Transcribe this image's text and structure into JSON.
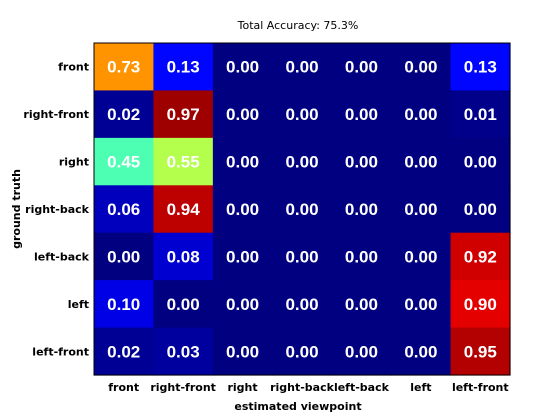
{
  "chart_data": {
    "type": "heatmap",
    "title": "Total Accuracy: 75.3%",
    "xlabel": "estimated viewpoint",
    "ylabel": "ground truth",
    "x_categories": [
      "front",
      "right-front",
      "right",
      "right-back",
      "left-back",
      "left",
      "left-front"
    ],
    "y_categories": [
      "front",
      "right-front",
      "right",
      "right-back",
      "left-back",
      "left",
      "left-front"
    ],
    "value_range": [
      0,
      1
    ],
    "colormap": "jet",
    "values": [
      [
        0.73,
        0.13,
        0.0,
        0.0,
        0.0,
        0.0,
        0.13
      ],
      [
        0.02,
        0.97,
        0.0,
        0.0,
        0.0,
        0.0,
        0.01
      ],
      [
        0.45,
        0.55,
        0.0,
        0.0,
        0.0,
        0.0,
        0.0
      ],
      [
        0.06,
        0.94,
        0.0,
        0.0,
        0.0,
        0.0,
        0.0
      ],
      [
        0.0,
        0.08,
        0.0,
        0.0,
        0.0,
        0.0,
        0.92
      ],
      [
        0.1,
        0.0,
        0.0,
        0.0,
        0.0,
        0.0,
        0.9
      ],
      [
        0.02,
        0.03,
        0.0,
        0.0,
        0.0,
        0.0,
        0.95
      ]
    ],
    "labels": [
      [
        "0.73",
        "0.13",
        "0.00",
        "0.00",
        "0.00",
        "0.00",
        "0.13"
      ],
      [
        "0.02",
        "0.97",
        "0.00",
        "0.00",
        "0.00",
        "0.00",
        "0.01"
      ],
      [
        "0.45",
        "0.55",
        "0.00",
        "0.00",
        "0.00",
        "0.00",
        "0.00"
      ],
      [
        "0.06",
        "0.94",
        "0.00",
        "0.00",
        "0.00",
        "0.00",
        "0.00"
      ],
      [
        "0.00",
        "0.08",
        "0.00",
        "0.00",
        "0.00",
        "0.00",
        "0.92"
      ],
      [
        "0.10",
        "0.00",
        "0.00",
        "0.00",
        "0.00",
        "0.00",
        "0.90"
      ],
      [
        "0.02",
        "0.03",
        "0.00",
        "0.00",
        "0.00",
        "0.00",
        "0.95"
      ]
    ],
    "grid": false,
    "legend": "none"
  }
}
